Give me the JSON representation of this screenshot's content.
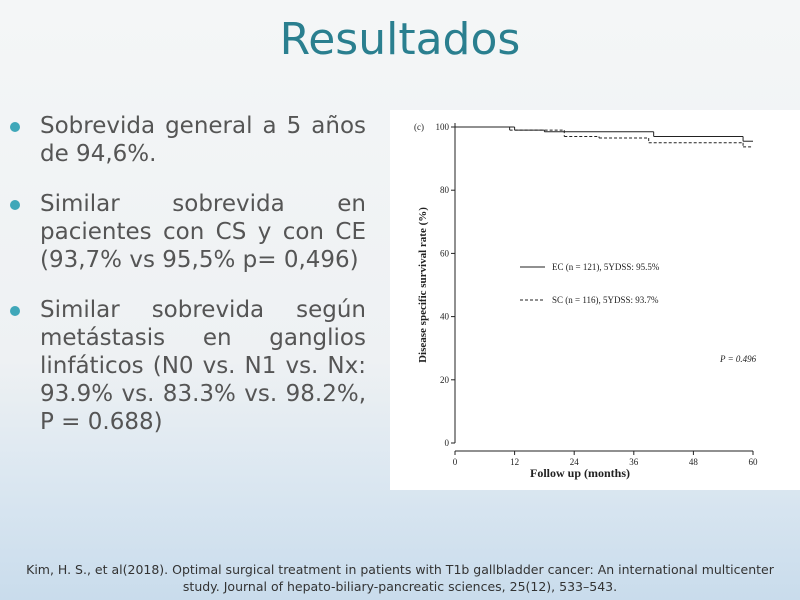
{
  "slide": {
    "title": "Resultados",
    "bullets": [
      "Sobrevida general a 5 años de 94,6%.",
      "Similar sobrevida en pacientes con CS y con CE (93,7% vs 95,5% p= 0,496)",
      "Similar sobrevida según metástasis en ganglios linfáticos (N0 vs. N1 vs. Nx: 93.9% vs. 83.3% vs. 98.2%, P = 0.688)"
    ],
    "citation": "Kim, H. S., et al(2018). Optimal surgical treatment in patients with T1b gallbladder cancer: An international multicenter study. Journal of hepato-biliary-pancreatic sciences, 25(12), 533–543."
  },
  "chart_data": {
    "type": "line",
    "panel_label": "(c)",
    "x_label": "Follow up (months)",
    "y_label": "Disease specific survival rate (%)",
    "annotation": "P = 0.496",
    "xlim": [
      0,
      60
    ],
    "xticks": [
      0,
      12,
      24,
      36,
      48,
      60
    ],
    "ylim": [
      0,
      100
    ],
    "yticks": [
      0,
      20,
      40,
      60,
      80,
      100
    ],
    "series": [
      {
        "name": "EC (n = 121), 5YDSS: 95.5%",
        "color": "#222222",
        "dash": "solid",
        "x": [
          0,
          12,
          18,
          40,
          58
        ],
        "values": [
          100,
          99,
          98.5,
          97,
          95.5
        ]
      },
      {
        "name": "SC (n = 116), 5YDSS: 93.7%",
        "color": "#222222",
        "dash": "dashed",
        "x": [
          0,
          11,
          22,
          29,
          39,
          58
        ],
        "values": [
          100,
          99,
          97,
          96.5,
          95,
          93.7
        ]
      }
    ]
  }
}
